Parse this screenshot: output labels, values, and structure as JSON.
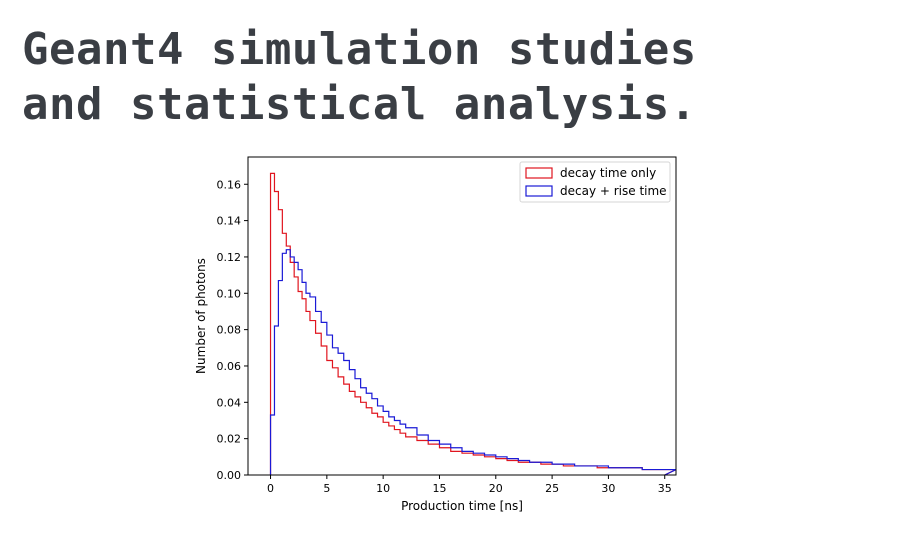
{
  "slide": {
    "title_lines": [
      "Geant4 simulation studies",
      "and statistical analysis."
    ]
  },
  "chart_data": {
    "type": "step",
    "title": "",
    "xlabel": "Production time [ns]",
    "ylabel": "Number of photons",
    "xlim": [
      -2,
      36
    ],
    "ylim": [
      0,
      0.175
    ],
    "xticks": [
      0,
      5,
      10,
      15,
      20,
      25,
      30,
      35
    ],
    "yticks": [
      0.0,
      0.02,
      0.04,
      0.06,
      0.08,
      0.1,
      0.12,
      0.14,
      0.16
    ],
    "ytick_labels": [
      "0.00",
      "0.02",
      "0.04",
      "0.06",
      "0.08",
      "0.10",
      "0.12",
      "0.14",
      "0.16"
    ],
    "grid": false,
    "legend_position": "top-right",
    "series": [
      {
        "name": "decay time only",
        "color": "#e0151f",
        "x": [
          0.0,
          0.35,
          0.7,
          1.05,
          1.4,
          1.75,
          2.1,
          2.45,
          2.8,
          3.15,
          3.5,
          4,
          4.5,
          5,
          5.5,
          6,
          6.5,
          7,
          7.5,
          8,
          8.5,
          9,
          9.5,
          10,
          10.5,
          11,
          11.5,
          12,
          13,
          14,
          15,
          16,
          17,
          18,
          19,
          20,
          21,
          22,
          23,
          24,
          25,
          26,
          27,
          28,
          29,
          30,
          31,
          32,
          33,
          34,
          35
        ],
        "y": [
          0.166,
          0.156,
          0.146,
          0.133,
          0.126,
          0.117,
          0.109,
          0.101,
          0.097,
          0.09,
          0.085,
          0.078,
          0.071,
          0.063,
          0.059,
          0.054,
          0.05,
          0.046,
          0.043,
          0.04,
          0.037,
          0.034,
          0.032,
          0.029,
          0.027,
          0.025,
          0.023,
          0.021,
          0.019,
          0.017,
          0.015,
          0.013,
          0.012,
          0.011,
          0.01,
          0.009,
          0.008,
          0.007,
          0.007,
          0.006,
          0.006,
          0.005,
          0.005,
          0.005,
          0.004,
          0.004,
          0.004,
          0.004,
          0.003,
          0.003,
          0.003
        ]
      },
      {
        "name": "decay + rise time",
        "color": "#1a1ad6",
        "x": [
          0.0,
          0.35,
          0.7,
          1.05,
          1.4,
          1.75,
          2.1,
          2.45,
          2.8,
          3.15,
          3.5,
          4,
          4.5,
          5,
          5.5,
          6,
          6.5,
          7,
          7.5,
          8,
          8.5,
          9,
          9.5,
          10,
          10.5,
          11,
          11.5,
          12,
          13,
          14,
          15,
          16,
          17,
          18,
          19,
          20,
          21,
          22,
          23,
          24,
          25,
          26,
          27,
          28,
          29,
          30,
          31,
          32,
          33,
          34,
          35
        ],
        "y": [
          0.033,
          0.082,
          0.107,
          0.122,
          0.124,
          0.12,
          0.117,
          0.113,
          0.106,
          0.1,
          0.098,
          0.09,
          0.084,
          0.077,
          0.07,
          0.067,
          0.063,
          0.058,
          0.053,
          0.048,
          0.045,
          0.042,
          0.038,
          0.035,
          0.032,
          0.03,
          0.028,
          0.026,
          0.022,
          0.019,
          0.017,
          0.015,
          0.013,
          0.012,
          0.011,
          0.01,
          0.009,
          0.008,
          0.007,
          0.007,
          0.006,
          0.006,
          0.005,
          0.005,
          0.005,
          0.004,
          0.004,
          0.004,
          0.003,
          0.003,
          0.003
        ]
      }
    ]
  }
}
